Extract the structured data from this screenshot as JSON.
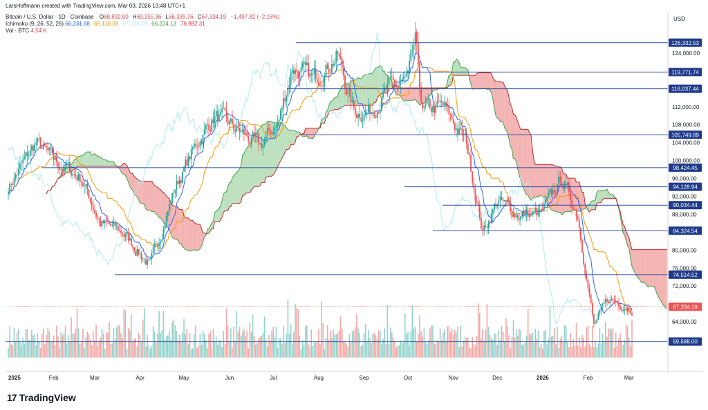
{
  "header": {
    "text": "LarsHoffmann created with TradingView.com, Mar 03, 2026 13:48 UTC+1"
  },
  "legend": {
    "symbol": "Bitcoin / U.S. Dollar · 1D · Coinbase",
    "ohlc": [
      {
        "label": "O",
        "value": "68,832.00"
      },
      {
        "label": "H",
        "value": "69,255.36"
      },
      {
        "label": "L",
        "value": "66,339.76"
      },
      {
        "label": "C",
        "value": "67,334.19"
      }
    ],
    "change": "−1,497.82 (−2.18%)",
    "ichimoku_label": "Ichimoku (9, 26, 52, 26)",
    "ichimoku_values": [
      {
        "value": "66,331.68",
        "color": "#2962ff"
      },
      {
        "value": "66,116.58",
        "color": "#ff9800"
      },
      {
        "value": "67,334.19",
        "color": "#b2ebf2"
      },
      {
        "value": "66,224.13",
        "color": "#43a047"
      },
      {
        "value": "78,982.31",
        "color": "#f23645"
      }
    ],
    "vol_label": "Vol · BTC",
    "vol_value": "4.54 K"
  },
  "axis": {
    "currency": "USD",
    "y_ticks": [
      "124,000.00",
      "112,000.00",
      "108,000.00",
      "104,000.00",
      "100,000.00",
      "96,000.00",
      "92,000.00",
      "88,000.00",
      "80,000.00",
      "76,000.00",
      "72,000.00",
      "64,000.00"
    ],
    "x_ticks": [
      "2025",
      "Feb",
      "Mar",
      "Apr",
      "May",
      "Jun",
      "Jul",
      "Aug",
      "Sep",
      "Oct",
      "Nov",
      "Dec",
      "2026",
      "Feb",
      "Mar"
    ]
  },
  "levels": [
    {
      "label": "126,332.53",
      "value": 126332.53
    },
    {
      "label": "119,771.74",
      "value": 119771.74
    },
    {
      "label": "116,037.44",
      "value": 116037.44
    },
    {
      "label": "105,749.89",
      "value": 105749.89
    },
    {
      "label": "98,424.45",
      "value": 98424.45
    },
    {
      "label": "94,128.94",
      "value": 94128.94
    },
    {
      "label": "90,034.44",
      "value": 90034.44
    },
    {
      "label": "84,324.54",
      "value": 84324.54
    },
    {
      "label": "74,514.52",
      "value": 74514.52
    },
    {
      "label": "59,588.00",
      "value": 59588.0
    }
  ],
  "current_price": {
    "label": "67,334.19",
    "value": 67334.19
  },
  "colors": {
    "up": "#26a69a",
    "down": "#ef5350",
    "level": "#2a4d9e",
    "tenkan": "#2962ff",
    "kijun": "#ff9800",
    "chikou": "#b2ebf2",
    "spanA": "#43a047",
    "spanB": "#c62828",
    "cloud_bull": "#a5d6a7",
    "cloud_bear": "#ef9a9a"
  },
  "branding": {
    "name": "TradingView",
    "mark": "17"
  },
  "chart_data": {
    "type": "line",
    "title": "Bitcoin / U.S. Dollar · 1D · Coinbase",
    "ylim": [
      56000,
      130000
    ],
    "series": [
      {
        "name": "Bitcoin / U.S. Dollar",
        "x": [
          "2025-01-01",
          "2025-01-20",
          "2025-02-01",
          "2025-02-20",
          "2025-03-05",
          "2025-03-20",
          "2025-04-08",
          "2025-04-25",
          "2025-05-10",
          "2025-05-22",
          "2025-06-10",
          "2025-06-22",
          "2025-07-05",
          "2025-07-14",
          "2025-07-28",
          "2025-08-14",
          "2025-08-25",
          "2025-09-05",
          "2025-09-18",
          "2025-10-01",
          "2025-10-06",
          "2025-10-11",
          "2025-10-25",
          "2025-11-10",
          "2025-11-21",
          "2025-12-01",
          "2025-12-15",
          "2025-12-31",
          "2026-01-14",
          "2026-01-25",
          "2026-02-05",
          "2026-02-15",
          "2026-03-03"
        ],
        "values": [
          94000,
          104000,
          100000,
          96000,
          86000,
          84000,
          76500,
          94000,
          104000,
          110000,
          106000,
          103000,
          109000,
          121000,
          118000,
          123500,
          111000,
          111000,
          116000,
          118000,
          126300,
          111000,
          112000,
          104000,
          84000,
          91000,
          88000,
          88000,
          96000,
          88000,
          63000,
          69000,
          67334
        ]
      }
    ]
  }
}
